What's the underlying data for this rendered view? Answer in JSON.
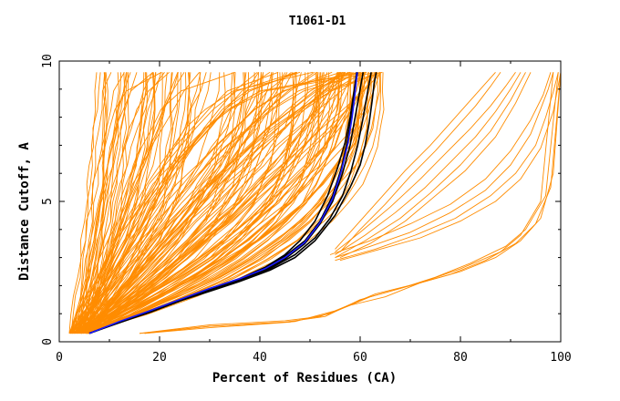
{
  "chart_data": {
    "type": "line",
    "title": "T1061-D1",
    "xlabel": "Percent of Residues (CA)",
    "ylabel": "Distance Cutoff, A",
    "xlim": [
      0,
      100
    ],
    "ylim": [
      0,
      10
    ],
    "x_ticks": [
      0,
      20,
      40,
      60,
      80,
      100
    ],
    "y_ticks": [
      0,
      5,
      10
    ],
    "x_tick_labels": [
      "0",
      "20",
      "40",
      "60",
      "80",
      "100"
    ],
    "y_tick_labels": [
      "0",
      "5",
      "10"
    ],
    "grid": false,
    "colors": {
      "orange": "#ff8c00",
      "black": "#000000",
      "blue": "#1a1aff"
    },
    "orange_bundle": {
      "count": 160,
      "start_x": [
        2,
        6
      ],
      "end_x": [
        6,
        65
      ],
      "start_y": 0.3,
      "end_y": 9.6
    },
    "series": [
      {
        "color": "#ff8c00",
        "x": [
          16,
          30,
          45,
          52,
          58,
          65,
          72,
          80,
          88,
          92,
          96,
          98.5
        ],
        "y": [
          0.3,
          0.6,
          0.75,
          0.9,
          1.3,
          1.6,
          2.1,
          2.6,
          3.2,
          3.8,
          5.0,
          9.6
        ]
      },
      {
        "color": "#ff8c00",
        "x": [
          16,
          30,
          45,
          53,
          60,
          68,
          75,
          82,
          89,
          93,
          97,
          99.5
        ],
        "y": [
          0.3,
          0.55,
          0.7,
          0.9,
          1.5,
          1.9,
          2.3,
          2.8,
          3.4,
          4.0,
          5.2,
          9.6
        ]
      },
      {
        "color": "#ff8c00",
        "x": [
          17,
          30,
          46,
          54,
          62,
          70,
          78,
          85,
          91,
          95,
          98,
          100
        ],
        "y": [
          0.3,
          0.5,
          0.7,
          1.0,
          1.6,
          2.0,
          2.4,
          2.9,
          3.5,
          4.2,
          5.5,
          9.6
        ]
      },
      {
        "color": "#ff8c00",
        "x": [
          17,
          30,
          47,
          55,
          63,
          72,
          80,
          87,
          92,
          96,
          98.5,
          100
        ],
        "y": [
          0.3,
          0.55,
          0.72,
          1.1,
          1.7,
          2.1,
          2.5,
          3.0,
          3.6,
          4.4,
          6.0,
          9.6
        ]
      },
      {
        "color": "#ff8c00",
        "x": [
          55,
          62,
          70,
          78,
          85,
          90,
          94,
          96,
          97.5,
          98.5
        ],
        "y": [
          3.0,
          3.4,
          3.9,
          4.6,
          5.4,
          6.3,
          7.4,
          8.3,
          9.0,
          9.6
        ]
      },
      {
        "color": "#ff8c00",
        "x": [
          55,
          63,
          71,
          79,
          86,
          91,
          95,
          97,
          98.5,
          99.5
        ],
        "y": [
          2.9,
          3.3,
          3.8,
          4.4,
          5.2,
          6.0,
          7.0,
          8.0,
          8.9,
          9.6
        ]
      },
      {
        "color": "#ff8c00",
        "x": [
          54,
          62,
          70,
          78,
          85,
          90,
          94,
          96.5,
          98
        ],
        "y": [
          3.1,
          3.6,
          4.2,
          4.9,
          5.8,
          6.8,
          7.9,
          8.8,
          9.6
        ]
      },
      {
        "color": "#ff8c00",
        "x": [
          56,
          64,
          72,
          80,
          87,
          92,
          96,
          98.5,
          100
        ],
        "y": [
          2.9,
          3.3,
          3.7,
          4.3,
          5.0,
          5.8,
          6.9,
          8.2,
          9.6
        ]
      },
      {
        "color": "#ff8c00",
        "x": [
          55,
          60,
          66,
          72,
          77,
          82,
          86,
          89,
          91
        ],
        "y": [
          3.2,
          3.9,
          4.8,
          5.8,
          6.7,
          7.6,
          8.4,
          9.1,
          9.6
        ]
      },
      {
        "color": "#ff8c00",
        "x": [
          55,
          61,
          67,
          73,
          78,
          83,
          87,
          90,
          92
        ],
        "y": [
          3.1,
          3.8,
          4.6,
          5.5,
          6.4,
          7.3,
          8.2,
          9.0,
          9.6
        ]
      },
      {
        "color": "#ff8c00",
        "x": [
          55,
          59,
          64,
          69,
          74,
          78,
          82,
          85,
          87
        ],
        "y": [
          3.3,
          4.1,
          5.1,
          6.1,
          7.0,
          7.8,
          8.6,
          9.2,
          9.6
        ]
      },
      {
        "color": "#ff8c00",
        "x": [
          56,
          60,
          65,
          70,
          75,
          79,
          83,
          86,
          88
        ],
        "y": [
          3.2,
          4.0,
          4.9,
          5.9,
          6.8,
          7.6,
          8.4,
          9.1,
          9.6
        ]
      },
      {
        "color": "#ff8c00",
        "x": [
          55,
          61,
          68,
          74,
          80,
          86,
          90,
          93
        ],
        "y": [
          3.0,
          3.6,
          4.4,
          5.3,
          6.3,
          7.5,
          8.6,
          9.6
        ]
      },
      {
        "color": "#ff8c00",
        "x": [
          56,
          62,
          69,
          75,
          81,
          87,
          91,
          94
        ],
        "y": [
          3.0,
          3.5,
          4.3,
          5.2,
          6.1,
          7.3,
          8.5,
          9.6
        ]
      },
      {
        "color": "#000000",
        "x": [
          6,
          12,
          18,
          24,
          30,
          36,
          41,
          45,
          49,
          52,
          54.5,
          56.5,
          58,
          59,
          59.8,
          60.3,
          60.6
        ],
        "y": [
          0.3,
          0.7,
          1.05,
          1.45,
          1.85,
          2.2,
          2.55,
          2.95,
          3.5,
          4.2,
          5.0,
          6.0,
          7.0,
          8.0,
          8.8,
          9.3,
          9.6
        ]
      },
      {
        "color": "#000000",
        "x": [
          6,
          12,
          18,
          24,
          30,
          36,
          41,
          45,
          49,
          52,
          54.5,
          56.3,
          57.5,
          58.3,
          58.8,
          59.2,
          59.5
        ],
        "y": [
          0.3,
          0.68,
          1.05,
          1.45,
          1.85,
          2.2,
          2.6,
          3.05,
          3.6,
          4.3,
          5.2,
          6.2,
          7.2,
          8.1,
          8.8,
          9.3,
          9.6
        ]
      },
      {
        "color": "#000000",
        "x": [
          6,
          12,
          18,
          24,
          30,
          36,
          41,
          45,
          48,
          51,
          53.5,
          55.5,
          57,
          58,
          58.6,
          59,
          59.3
        ],
        "y": [
          0.3,
          0.7,
          1.1,
          1.5,
          1.9,
          2.25,
          2.65,
          3.1,
          3.6,
          4.3,
          5.2,
          6.2,
          7.1,
          8.0,
          8.7,
          9.2,
          9.6
        ]
      },
      {
        "color": "#000000",
        "x": [
          6,
          12,
          18,
          24,
          30,
          36,
          42,
          47,
          51,
          54,
          56.5,
          58.2,
          59.5,
          60.5,
          61.3,
          61.8,
          62.2
        ],
        "y": [
          0.3,
          0.7,
          1.05,
          1.45,
          1.85,
          2.2,
          2.6,
          3.1,
          3.7,
          4.4,
          5.2,
          6.1,
          7.0,
          7.9,
          8.7,
          9.2,
          9.6
        ]
      },
      {
        "color": "#000000",
        "x": [
          6,
          12,
          18,
          24,
          30,
          36,
          42,
          47,
          51,
          55,
          58,
          60,
          61,
          61.8,
          62.4,
          62.8,
          63.2
        ],
        "y": [
          0.3,
          0.7,
          1.05,
          1.45,
          1.8,
          2.15,
          2.55,
          3.0,
          3.6,
          4.5,
          5.5,
          6.3,
          7.0,
          7.8,
          8.6,
          9.2,
          9.6
        ]
      },
      {
        "color": "#1a1aff",
        "x": [
          6,
          12,
          18,
          24,
          30,
          36,
          41,
          45,
          49,
          52,
          54.5,
          56.3,
          57.6,
          58.4,
          58.9,
          59.2,
          59.4
        ],
        "y": [
          0.3,
          0.72,
          1.1,
          1.5,
          1.9,
          2.25,
          2.6,
          3.0,
          3.55,
          4.25,
          5.1,
          6.1,
          7.1,
          8.0,
          8.7,
          9.2,
          9.6
        ]
      }
    ]
  }
}
